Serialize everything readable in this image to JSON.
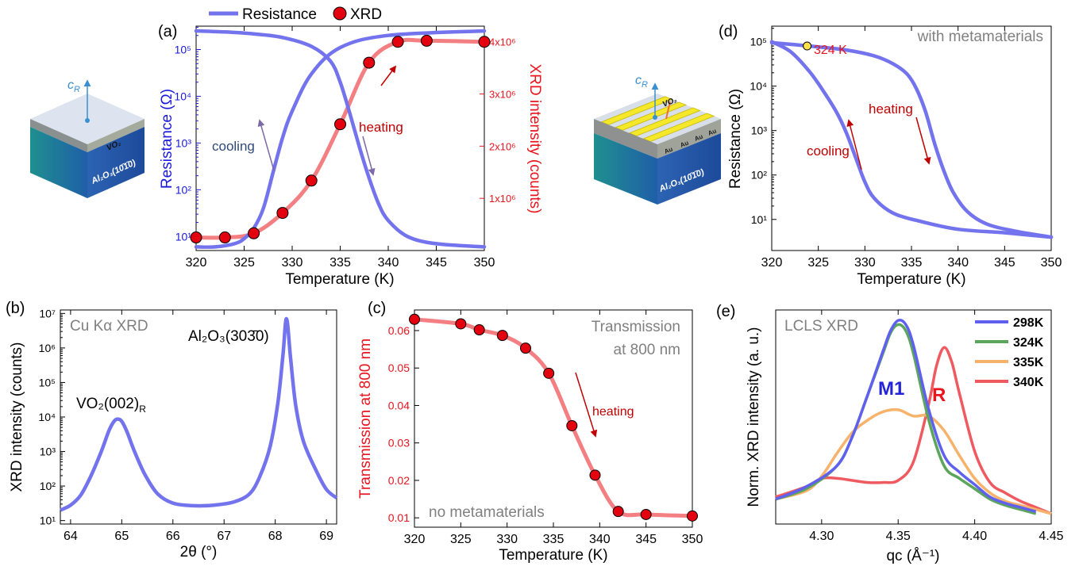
{
  "panel_letters": {
    "a": "(a)",
    "b": "(b)",
    "c": "(c)",
    "d": "(d)",
    "e": "(e)"
  },
  "legend_a": {
    "resistance": "Resistance",
    "xrd": "XRD"
  },
  "inset_a": {
    "film": "VO₂",
    "substrate": "Al₂O₃(10̄1̄0)",
    "axis": "c",
    "axis_sub": "R"
  },
  "inset_d": {
    "film": "VO₂",
    "electrode": "Au",
    "substrate": "Al₂O₃(10̄1̄0)",
    "axis": "c",
    "axis_sub": "R"
  },
  "colors": {
    "resistance": "#7373ee",
    "xrd_fit": "#f47f82",
    "xrd_marker": "#e3000f",
    "annotation": "#c00000",
    "left_axis": "#1a1adb",
    "right_axis": "#e8141e",
    "panel_label": "#808080"
  },
  "chart_data": [
    {
      "id": "a",
      "type": "line",
      "xlabel": "Temperature (K)",
      "ylabel": "Resistance (Ω)",
      "y2label": "XRD intensity (counts)",
      "xlim": [
        320,
        350
      ],
      "xticks": [
        "320",
        "325",
        "330",
        "335",
        "340",
        "345",
        "350"
      ],
      "ylim_log10": [
        0.7,
        5.5
      ],
      "yscale": "log",
      "yticks": [
        "10¹",
        "10²",
        "10³",
        "10⁴",
        "10⁵"
      ],
      "y2lim": [
        0,
        4300000
      ],
      "y2ticks": [
        "1x10⁶",
        "2x10⁶",
        "3x10⁶",
        "4x10⁶"
      ],
      "annotations": {
        "cooling": "cooling",
        "heating": "heating"
      },
      "series": [
        {
          "name": "Resistance",
          "branch": "heating",
          "x": [
            320,
            323,
            326,
            329,
            332,
            334,
            335,
            336,
            337,
            338,
            339,
            340,
            342,
            345,
            350
          ],
          "y": [
            250000,
            238000,
            216000,
            181000,
            117000,
            56000,
            20000,
            4300,
            820,
            180,
            50,
            22,
            10,
            7,
            6
          ]
        },
        {
          "name": "Resistance",
          "branch": "cooling",
          "x": [
            320,
            322,
            324,
            325,
            326,
            327,
            328,
            329,
            330,
            332,
            335,
            340,
            350
          ],
          "y": [
            6,
            6,
            7,
            9,
            15,
            40,
            230,
            1300,
            4800,
            30000,
            110000,
            200000,
            250000
          ]
        },
        {
          "name": "XRD",
          "x": [
            320,
            323,
            326,
            329,
            332,
            335,
            338,
            341,
            344,
            350
          ],
          "y": [
            250000,
            250000,
            330000,
            720000,
            1340000,
            2420000,
            3600000,
            4000000,
            4020000,
            4000000
          ]
        }
      ]
    },
    {
      "id": "b",
      "type": "line",
      "xlabel": "2θ (°)",
      "ylabel": "XRD intensity (counts)",
      "yscale": "log",
      "xlim": [
        63.8,
        69.2
      ],
      "xticks": [
        "64",
        "65",
        "66",
        "67",
        "68",
        "69"
      ],
      "ylim_log10": [
        0.9,
        7.1
      ],
      "yticks": [
        "10¹",
        "10²",
        "10³",
        "10⁴",
        "10⁵",
        "10⁶",
        "10⁷"
      ],
      "title": "Cu Kα XRD",
      "peak_labels": {
        "vo2": "VO₂(002)",
        "vo2_sub": "R",
        "al2o3": "Al₂O₃(303̄0)"
      },
      "x": [
        63.8,
        64.0,
        64.2,
        64.4,
        64.6,
        64.75,
        64.85,
        64.92,
        65.0,
        65.1,
        65.25,
        65.45,
        65.7,
        66.0,
        66.4,
        66.8,
        67.2,
        67.5,
        67.7,
        67.9,
        68.05,
        68.15,
        68.22,
        68.3,
        68.4,
        68.55,
        68.8,
        69.0,
        69.2
      ],
      "y": [
        20,
        28,
        55,
        200,
        1000,
        4000,
        7500,
        8700,
        7500,
        3800,
        1000,
        220,
        60,
        32,
        27,
        28,
        35,
        60,
        190,
        1400,
        25000,
        600000,
        7000000,
        500000,
        22000,
        2000,
        280,
        80,
        45
      ]
    },
    {
      "id": "c",
      "type": "line",
      "xlabel": "Temperature (K)",
      "ylabel": "Transmission at 800 nm",
      "xlim": [
        320,
        350
      ],
      "xticks": [
        "320",
        "325",
        "330",
        "335",
        "340",
        "345",
        "350"
      ],
      "ylim": [
        0.0075,
        0.0655
      ],
      "yticks": [
        "0.01",
        "0.02",
        "0.03",
        "0.04",
        "0.05",
        "0.06"
      ],
      "title": "Transmission at 800 nm",
      "note": "no metamaterials",
      "annotation": "heating",
      "x": [
        320,
        325,
        327,
        329.5,
        332,
        334.5,
        337,
        339.5,
        342,
        345,
        350
      ],
      "y": [
        0.063,
        0.0618,
        0.0602,
        0.0587,
        0.0553,
        0.0486,
        0.0346,
        0.0214,
        0.0117,
        0.0109,
        0.0105
      ]
    },
    {
      "id": "d",
      "type": "line",
      "xlabel": "Temperature (K)",
      "ylabel": "Resistance (Ω)",
      "yscale": "log",
      "xlim": [
        320,
        350
      ],
      "xticks": [
        "320",
        "325",
        "330",
        "335",
        "340",
        "345",
        "350"
      ],
      "ylim_log10": [
        0.3,
        5.35
      ],
      "yticks": [
        "10¹",
        "10²",
        "10³",
        "10⁴",
        "10⁵"
      ],
      "title": "with metamaterials",
      "marker_label": "324 K",
      "marker": {
        "x": 323.8,
        "y": 80000
      },
      "annotations": {
        "cooling": "cooling",
        "heating": "heating"
      },
      "series": [
        {
          "name": "heating",
          "x": [
            320,
            324,
            328,
            331,
            333,
            334.5,
            335.5,
            336.5,
            337.5,
            338.5,
            339.5,
            341,
            343,
            346,
            350
          ],
          "y": [
            95000,
            80000,
            65000,
            48000,
            32000,
            19000,
            9000,
            2700,
            500,
            120,
            40,
            15,
            8,
            5.5,
            4
          ]
        },
        {
          "name": "cooling",
          "x": [
            320,
            322,
            324,
            325.5,
            327,
            328,
            329,
            330,
            331,
            333,
            336,
            340,
            345,
            350
          ],
          "y": [
            100000,
            60000,
            22000,
            8000,
            2500,
            900,
            250,
            70,
            30,
            14,
            9,
            6,
            5,
            4
          ]
        }
      ]
    },
    {
      "id": "e",
      "type": "line",
      "xlabel": "qᴄ (Å⁻¹)",
      "ylabel": "Norm. XRD intensity (a. u.)",
      "xlim": [
        4.27,
        4.45
      ],
      "xticks": [
        "4.30",
        "4.35",
        "4.40",
        "4.45"
      ],
      "title": "LCLS XRD",
      "labels": {
        "m1": "M1",
        "r": "R"
      },
      "series": [
        {
          "name": "298K",
          "color": "#6060ee",
          "x": [
            4.27,
            4.29,
            4.31,
            4.32,
            4.33,
            4.34,
            4.345,
            4.35,
            4.355,
            4.36,
            4.37,
            4.38,
            4.39,
            4.4,
            4.41,
            4.42,
            4.43,
            4.44
          ],
          "y": [
            0.12,
            0.18,
            0.28,
            0.42,
            0.62,
            0.83,
            0.93,
            0.98,
            0.96,
            0.86,
            0.55,
            0.33,
            0.25,
            0.19,
            0.13,
            0.1,
            0.08,
            0.06
          ]
        },
        {
          "name": "324K",
          "color": "#5ca55c",
          "x": [
            4.27,
            4.29,
            4.31,
            4.32,
            4.33,
            4.34,
            4.345,
            4.35,
            4.355,
            4.36,
            4.37,
            4.38,
            4.39,
            4.4,
            4.41,
            4.42,
            4.43,
            4.44
          ],
          "y": [
            0.12,
            0.17,
            0.28,
            0.42,
            0.62,
            0.82,
            0.92,
            0.96,
            0.93,
            0.82,
            0.5,
            0.28,
            0.22,
            0.17,
            0.12,
            0.09,
            0.07,
            0.05
          ]
        },
        {
          "name": "335K",
          "color": "#f7b26b",
          "x": [
            4.27,
            4.29,
            4.3,
            4.31,
            4.32,
            4.33,
            4.34,
            4.35,
            4.36,
            4.37,
            4.38,
            4.39,
            4.4,
            4.41,
            4.42,
            4.43,
            4.44,
            4.45
          ],
          "y": [
            0.12,
            0.16,
            0.23,
            0.34,
            0.44,
            0.5,
            0.54,
            0.55,
            0.52,
            0.52,
            0.45,
            0.33,
            0.22,
            0.15,
            0.11,
            0.09,
            0.07,
            0.05
          ]
        },
        {
          "name": "340K",
          "color": "#ee5a5f",
          "x": [
            4.27,
            4.29,
            4.3,
            4.31,
            4.32,
            4.33,
            4.34,
            4.35,
            4.36,
            4.37,
            4.375,
            4.38,
            4.385,
            4.39,
            4.4,
            4.41,
            4.42,
            4.43,
            4.44,
            4.45
          ],
          "y": [
            0.13,
            0.18,
            0.22,
            0.22,
            0.21,
            0.2,
            0.2,
            0.21,
            0.3,
            0.58,
            0.76,
            0.85,
            0.78,
            0.63,
            0.35,
            0.2,
            0.15,
            0.11,
            0.08,
            0.05
          ]
        }
      ]
    }
  ]
}
